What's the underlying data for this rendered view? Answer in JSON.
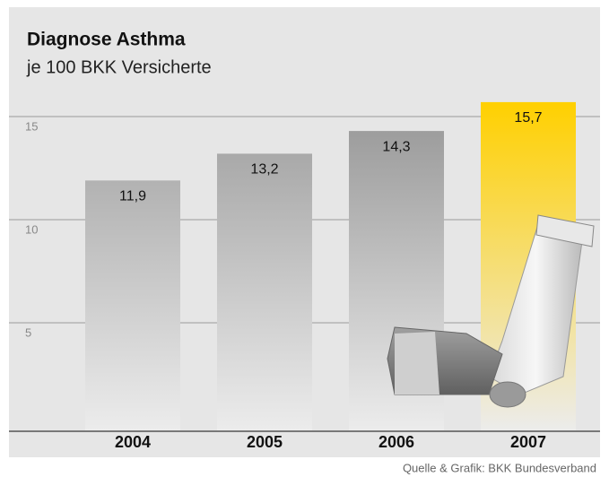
{
  "chart_data": {
    "type": "bar",
    "title": "Diagnose Asthma",
    "subtitle": "je 100 BKK Versicherte",
    "categories": [
      "2004",
      "2005",
      "2006",
      "2007"
    ],
    "values": [
      11.9,
      13.2,
      14.3,
      15.7
    ],
    "value_labels": [
      "11,9",
      "13,2",
      "14,3",
      "15,7"
    ],
    "colors": [
      "#b2b2b2",
      "#a9a9a9",
      "#9d9d9d",
      "#ffd000"
    ],
    "ylim": [
      0,
      16
    ],
    "yticks": [
      5,
      10,
      15
    ],
    "grid": true,
    "source": "Quelle & Grafik: BKK Bundesverband"
  }
}
